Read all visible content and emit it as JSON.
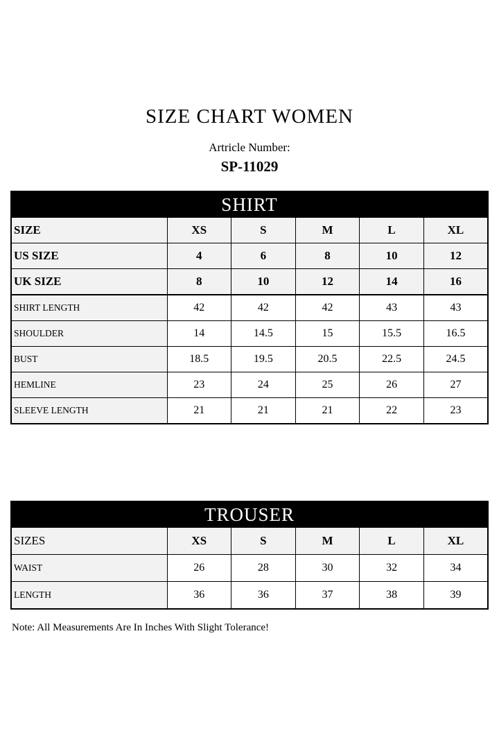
{
  "page": {
    "title": "SIZE CHART WOMEN",
    "article_label": "Artricle Number:",
    "article_number": "SP-11029",
    "note": "Note: All Measurements Are In Inches With Slight Tolerance!"
  },
  "colors": {
    "band_background": "#000000",
    "band_text": "#ffffff",
    "header_row_background": "#f2f2f2",
    "cell_background": "#ffffff",
    "border": "#000000"
  },
  "shirt_table": {
    "title": "SHIRT",
    "size_rows": [
      {
        "label": "SIZE",
        "values": [
          "XS",
          "S",
          "M",
          "L",
          "XL"
        ]
      },
      {
        "label": "US SIZE",
        "values": [
          "4",
          "6",
          "8",
          "10",
          "12"
        ]
      },
      {
        "label": "UK SIZE",
        "values": [
          "8",
          "10",
          "12",
          "14",
          "16"
        ]
      }
    ],
    "measurement_rows": [
      {
        "label": "SHIRT LENGTH",
        "values": [
          "42",
          "42",
          "42",
          "43",
          "43"
        ]
      },
      {
        "label": "SHOULDER",
        "values": [
          "14",
          "14.5",
          "15",
          "15.5",
          "16.5"
        ]
      },
      {
        "label": "BUST",
        "values": [
          "18.5",
          "19.5",
          "20.5",
          "22.5",
          "24.5"
        ]
      },
      {
        "label": "HEMLINE",
        "values": [
          "23",
          "24",
          "25",
          "26",
          "27"
        ]
      },
      {
        "label": "SLEEVE LENGTH",
        "values": [
          "21",
          "21",
          "21",
          "22",
          "23"
        ]
      }
    ]
  },
  "trouser_table": {
    "title": "TROUSER",
    "header_row": {
      "label": "SIZES",
      "values": [
        "XS",
        "S",
        "M",
        "L",
        "XL"
      ]
    },
    "measurement_rows": [
      {
        "label": "WAIST",
        "values": [
          "26",
          "28",
          "30",
          "32",
          "34"
        ]
      },
      {
        "label": "LENGTH",
        "values": [
          "36",
          "36",
          "37",
          "38",
          "39"
        ]
      }
    ]
  }
}
